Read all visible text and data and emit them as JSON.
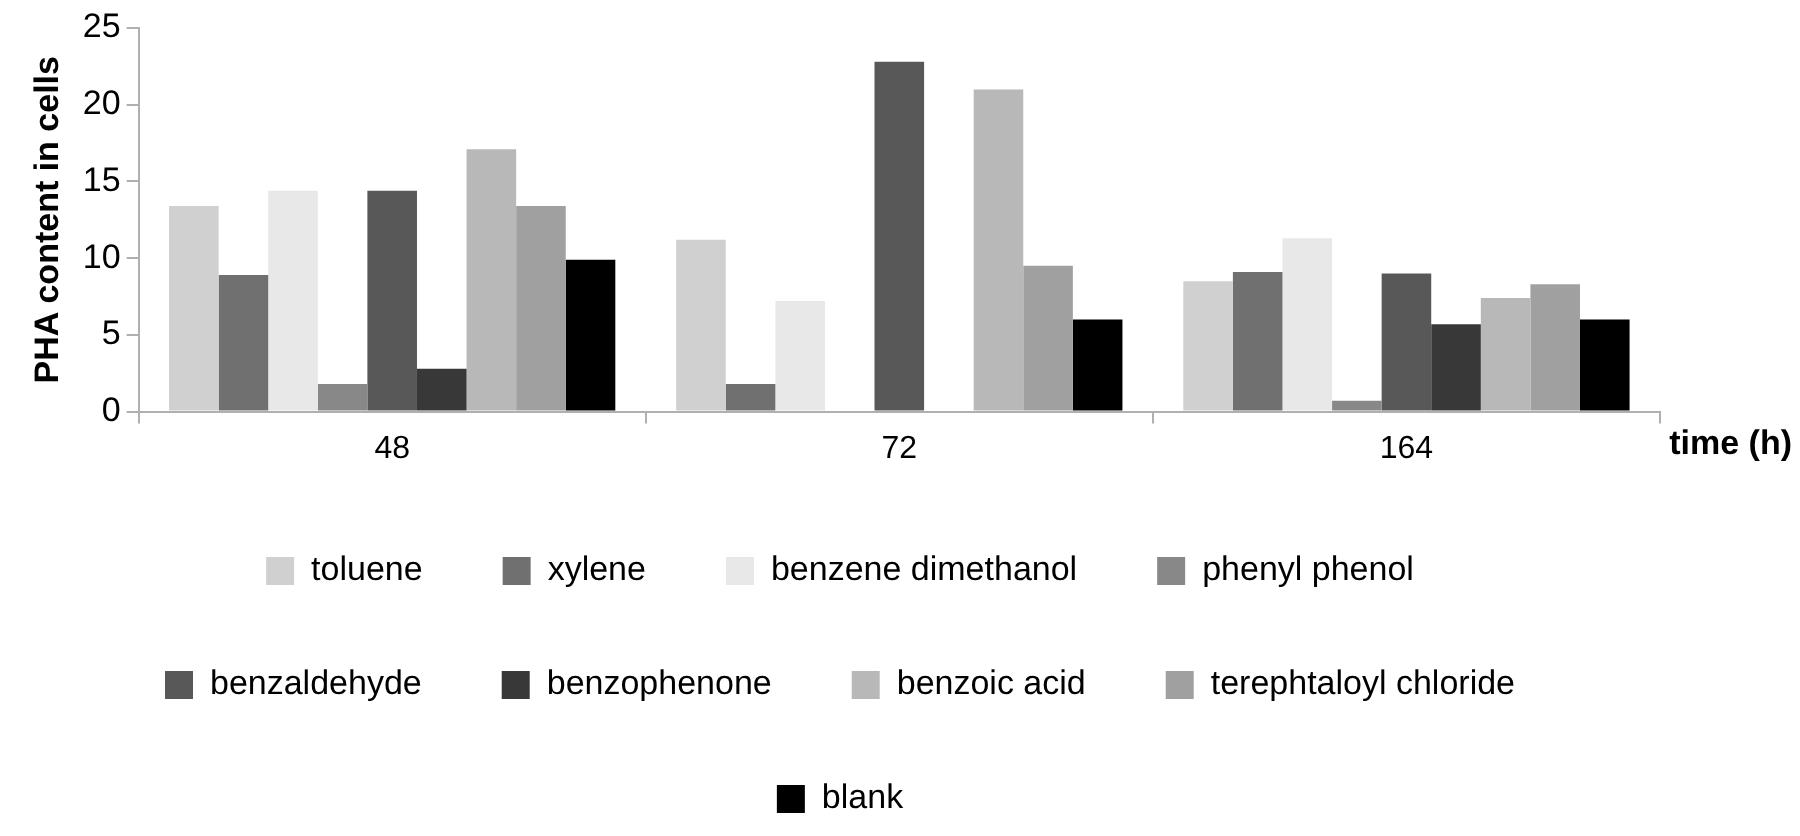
{
  "chart_data": {
    "type": "bar",
    "xlabel": "time (h)",
    "ylabel": "PHA content in cells",
    "categories": [
      "48",
      "72",
      "164"
    ],
    "ylim": [
      0,
      25
    ],
    "yticks": [
      0,
      5,
      10,
      15,
      20,
      25
    ],
    "grid": false,
    "legend": "bottom",
    "series": [
      {
        "name": "toluene",
        "color": "#d0d0d0",
        "values": [
          13.4,
          11.2,
          8.5
        ]
      },
      {
        "name": "xylene",
        "color": "#707070",
        "values": [
          8.9,
          1.8,
          9.1
        ]
      },
      {
        "name": "benzene dimethanol",
        "color": "#e8e8e8",
        "values": [
          14.4,
          7.2,
          11.3
        ]
      },
      {
        "name": "phenyl phenol",
        "color": "#888888",
        "values": [
          1.8,
          null,
          0.7
        ]
      },
      {
        "name": "benzaldehyde",
        "color": "#585858",
        "values": [
          14.4,
          22.8,
          9.0
        ]
      },
      {
        "name": "benzophenone",
        "color": "#383838",
        "values": [
          2.8,
          null,
          5.7
        ]
      },
      {
        "name": "benzoic acid",
        "color": "#b8b8b8",
        "values": [
          17.1,
          21.0,
          7.4
        ]
      },
      {
        "name": "terephtaloyl chloride",
        "color": "#a0a0a0",
        "values": [
          13.4,
          9.5,
          8.3
        ]
      },
      {
        "name": "blank",
        "color": "#000000",
        "values": [
          9.9,
          6.0,
          6.0
        ]
      }
    ]
  }
}
